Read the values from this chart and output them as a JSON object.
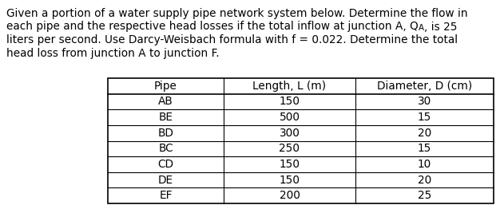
{
  "para_line1": "Given a portion of a water supply pipe network system below. Determine the flow in",
  "para_line2_pre": "each pipe and the respective head losses if the total inflow at junction A, Q",
  "para_line2_sub": "A",
  "para_line2_post": ", is 25",
  "para_line3": "liters per second. Use Darcy-Weisbach formula with f = 0.022. Determine the total",
  "para_line4": "head loss from junction A to junction F.",
  "col_headers": [
    "Pipe",
    "Length, L (m)",
    "Diameter, D (cm)"
  ],
  "rows": [
    [
      "AB",
      "150",
      "30"
    ],
    [
      "BE",
      "500",
      "15"
    ],
    [
      "BD",
      "300",
      "20"
    ],
    [
      "BC",
      "250",
      "15"
    ],
    [
      "CD",
      "150",
      "10"
    ],
    [
      "DE",
      "150",
      "20"
    ],
    [
      "EF",
      "200",
      "25"
    ]
  ],
  "background_color": "#ffffff",
  "text_color": "#000000",
  "para_fontsize": 9.8,
  "table_fontsize": 9.8,
  "fig_width": 6.31,
  "fig_height": 2.62,
  "dpi": 100
}
